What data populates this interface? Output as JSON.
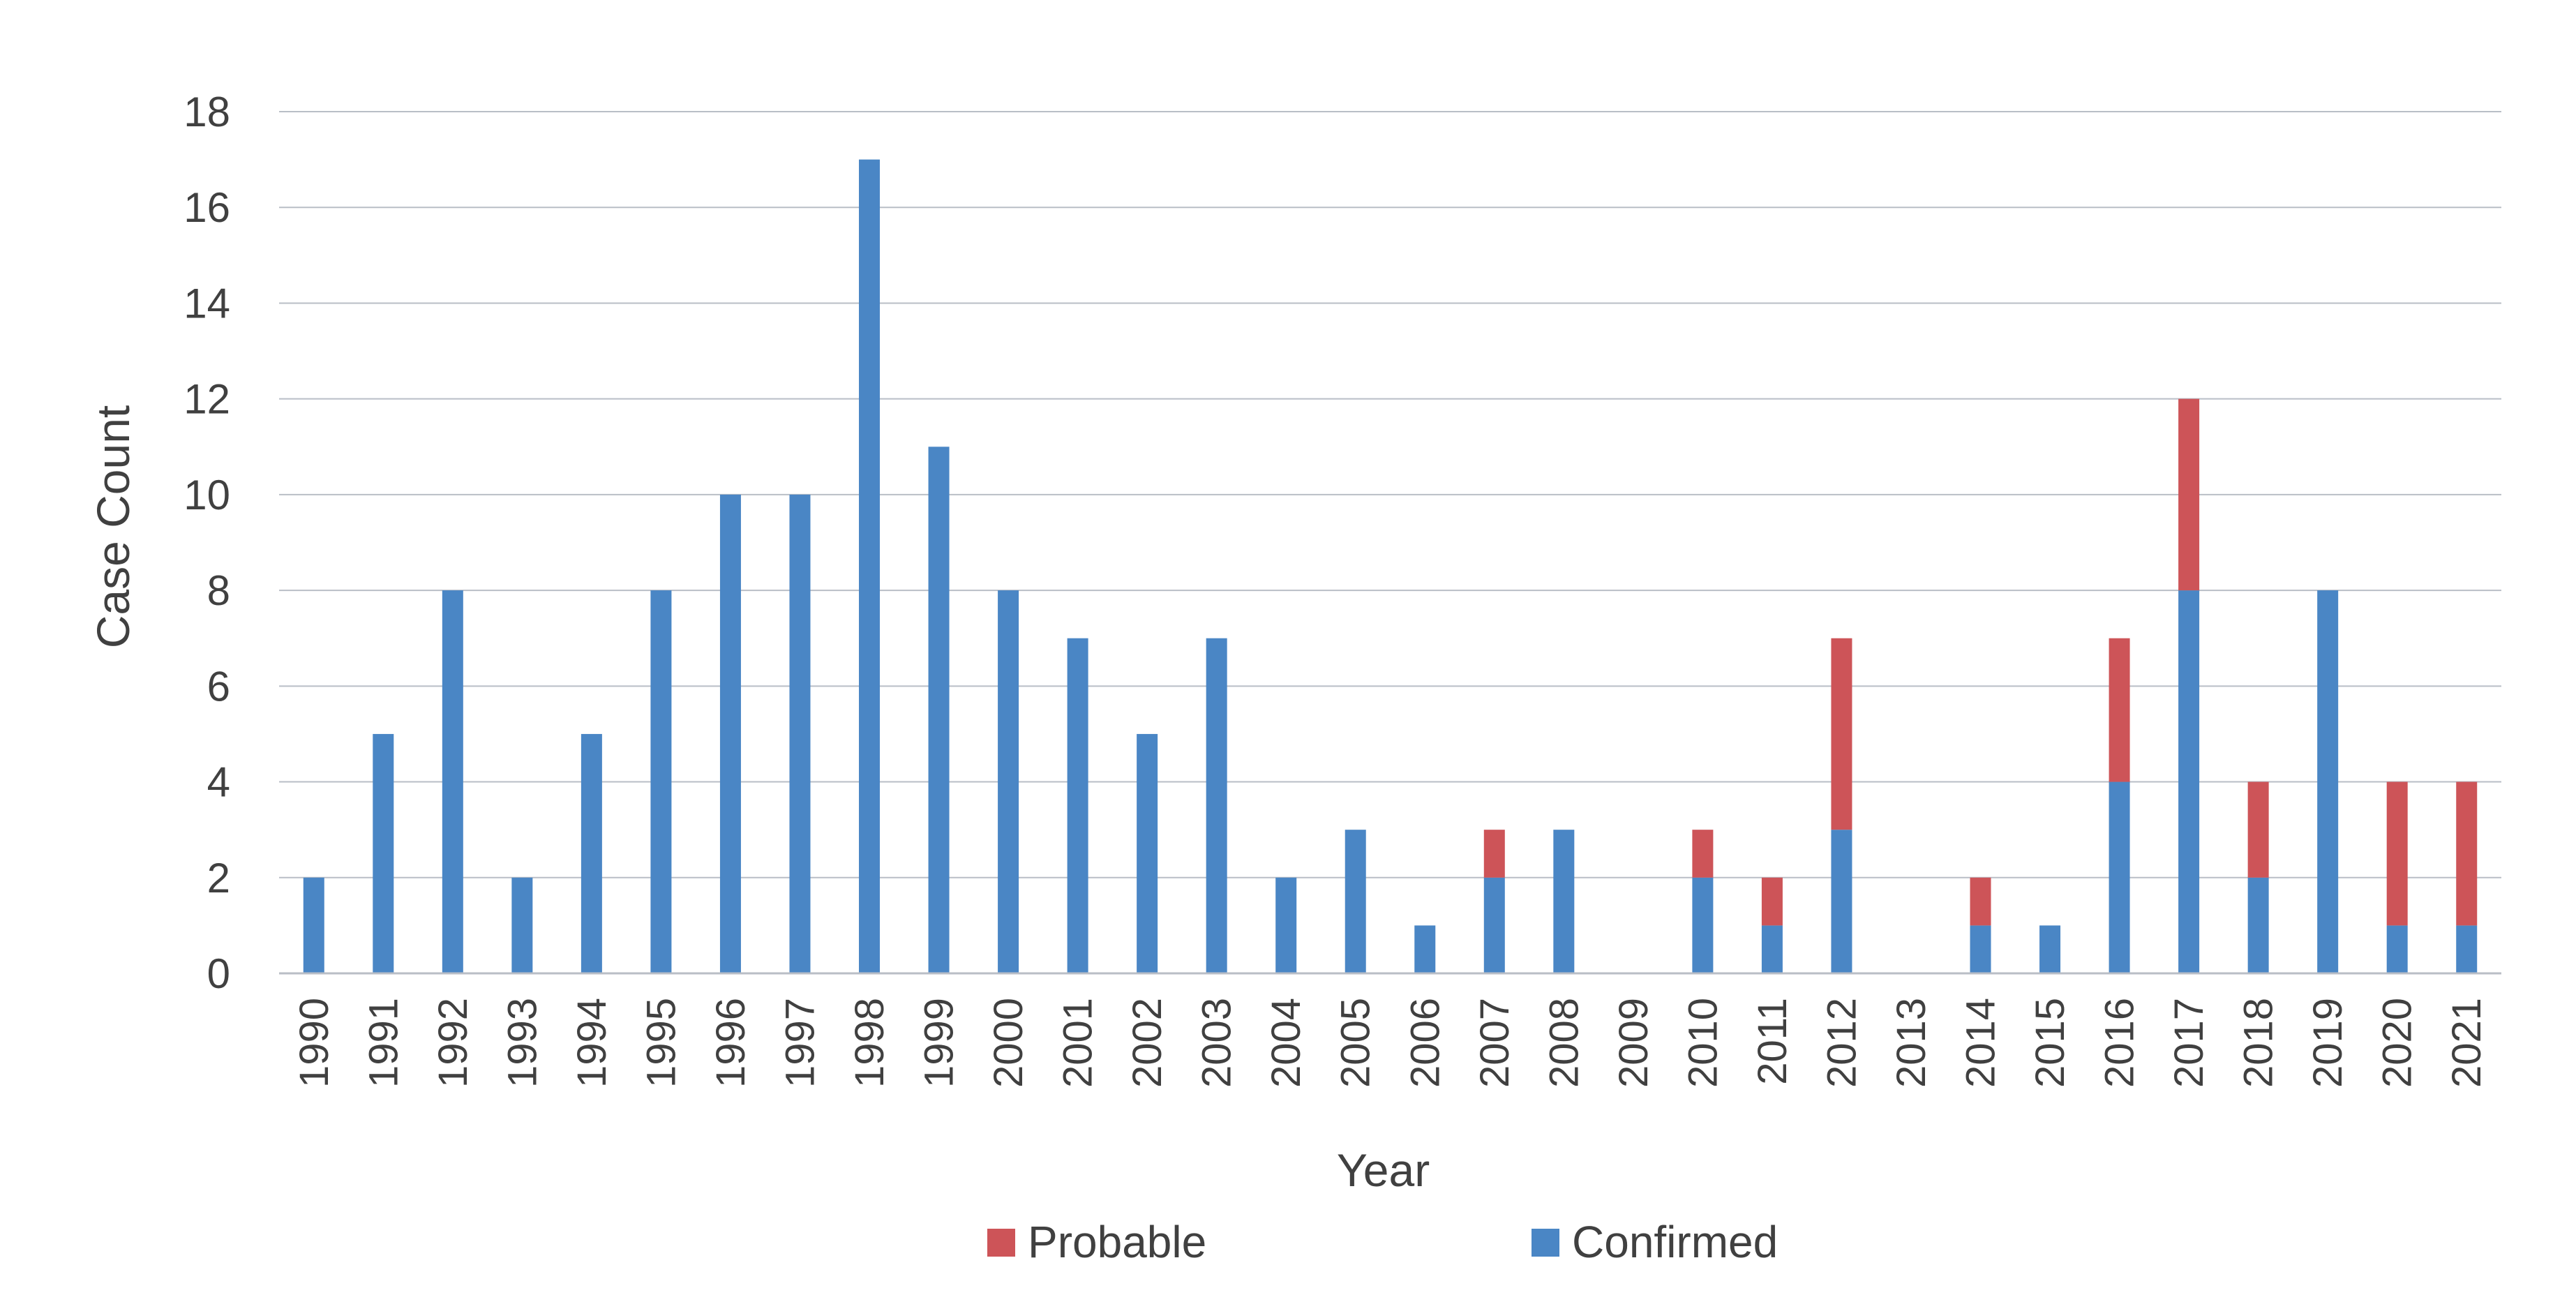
{
  "chart_data": {
    "type": "bar",
    "stacked": true,
    "title": "",
    "xlabel": "Year",
    "ylabel": "Case Count",
    "ylim": [
      0,
      18
    ],
    "yticks": [
      "0",
      "2",
      "4",
      "6",
      "8",
      "10",
      "12",
      "14",
      "16",
      "18"
    ],
    "grid": true,
    "legend_position": "bottom",
    "categories": [
      "1990",
      "1991",
      "1992",
      "1993",
      "1994",
      "1995",
      "1996",
      "1997",
      "1998",
      "1999",
      "2000",
      "2001",
      "2002",
      "2003",
      "2004",
      "2005",
      "2006",
      "2007",
      "2008",
      "2009",
      "2010",
      "2011",
      "2012",
      "2013",
      "2014",
      "2015",
      "2016",
      "2017",
      "2018",
      "2019",
      "2020",
      "2021"
    ],
    "series": [
      {
        "name": "Confirmed",
        "color": "#4a86c5",
        "values": [
          2,
          5,
          8,
          2,
          5,
          8,
          10,
          10,
          17,
          11,
          8,
          7,
          5,
          7,
          2,
          3,
          1,
          2,
          3,
          0,
          2,
          1,
          3,
          0,
          1,
          1,
          4,
          8,
          2,
          8,
          1,
          1
        ]
      },
      {
        "name": "Probable",
        "color": "#cd5458",
        "values": [
          0,
          0,
          0,
          0,
          0,
          0,
          0,
          0,
          0,
          0,
          0,
          0,
          0,
          0,
          0,
          0,
          0,
          1,
          0,
          0,
          1,
          1,
          4,
          0,
          1,
          0,
          3,
          4,
          2,
          0,
          3,
          3
        ]
      }
    ],
    "legend": [
      {
        "name": "Probable",
        "color": "#cd5458"
      },
      {
        "name": "Confirmed",
        "color": "#4a86c5"
      }
    ]
  }
}
